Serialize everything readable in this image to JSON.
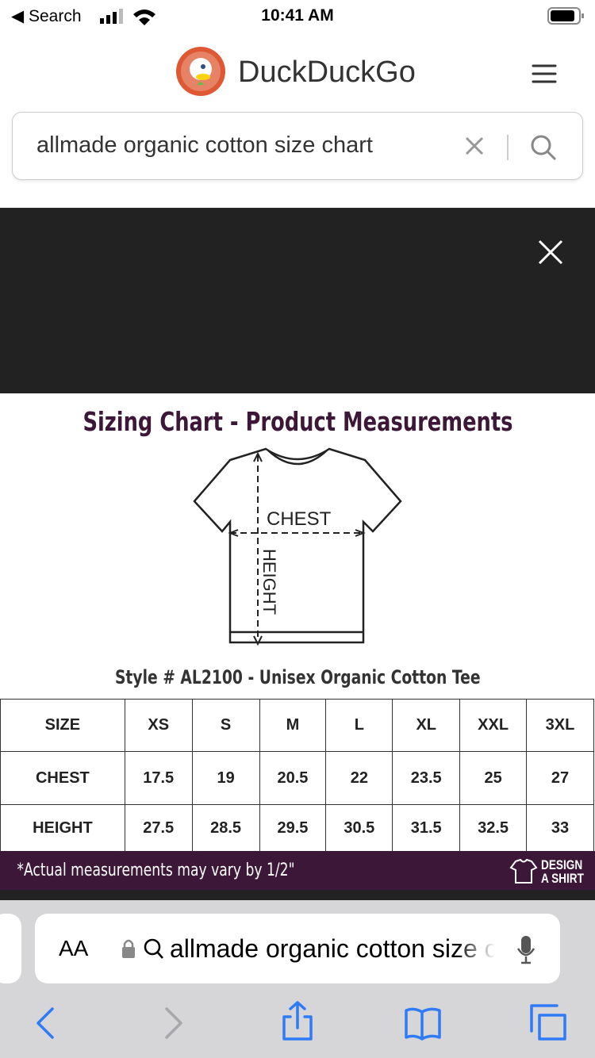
{
  "status_bar": {
    "back": "Search",
    "time": "10:41 AM"
  },
  "header": {
    "brand": "DuckDuckGo"
  },
  "search": {
    "query": "allmade organic cotton size chart"
  },
  "image": {
    "title": "Sizing Chart - Product Measurements",
    "chest_label": "CHEST",
    "height_label": "HEIGHT",
    "style": "Style # AL2100 - Unisex Organic Cotton Tee",
    "table": {
      "header": [
        "SIZE",
        "XS",
        "S",
        "M",
        "L",
        "XL",
        "XXL",
        "3XL"
      ],
      "rows": [
        [
          "CHEST",
          "17.5",
          "19",
          "20.5",
          "22",
          "23.5",
          "25",
          "27"
        ],
        [
          "HEIGHT",
          "27.5",
          "28.5",
          "29.5",
          "30.5",
          "31.5",
          "32.5",
          "33"
        ]
      ]
    },
    "footnote": "*Actual measurements may vary by 1/2\"",
    "logo": [
      "DESIGN",
      "A SHIRT"
    ]
  },
  "address_bar": {
    "text_size": "AA",
    "url": "allmade organic cotton size chart"
  }
}
